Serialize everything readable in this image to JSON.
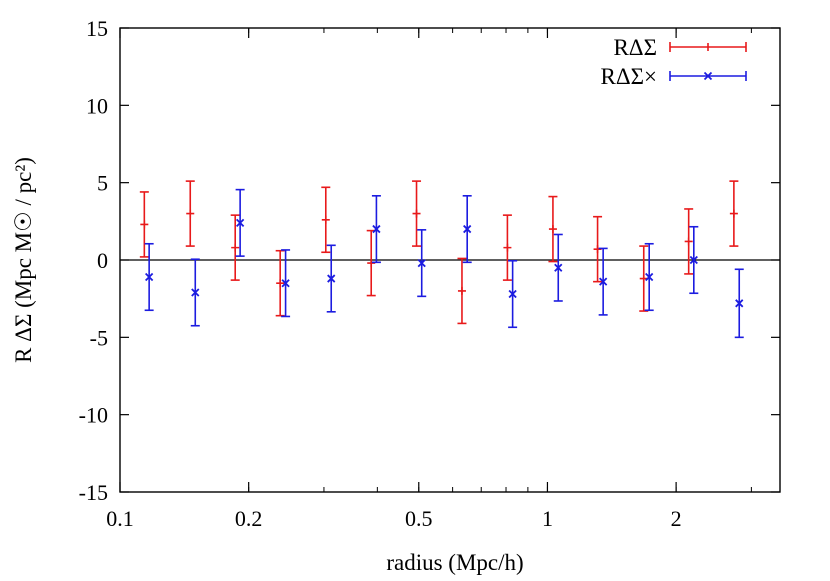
{
  "chart_data": {
    "type": "scatter",
    "title": "",
    "xlabel": "radius (Mpc/h)",
    "ylabel": "R ΔΣ (Mpc M☉ / pc²)",
    "xscale": "log",
    "xlim": [
      0.1,
      3.5
    ],
    "ylim": [
      -15,
      15
    ],
    "xticks": [
      {
        "value": 0.1,
        "label": "0.1"
      },
      {
        "value": 0.2,
        "label": "0.2"
      },
      {
        "value": 0.5,
        "label": "0.5"
      },
      {
        "value": 1,
        "label": "1"
      },
      {
        "value": 2,
        "label": "2"
      }
    ],
    "yticks": [
      {
        "value": -15,
        "label": "-15"
      },
      {
        "value": -10,
        "label": "-10"
      },
      {
        "value": -5,
        "label": "-5"
      },
      {
        "value": 0,
        "label": "0"
      },
      {
        "value": 5,
        "label": "5"
      },
      {
        "value": 10,
        "label": "10"
      },
      {
        "value": 15,
        "label": "15"
      }
    ],
    "reference_line": 0,
    "grid": false,
    "legend_position": "top-right",
    "series": [
      {
        "name": "RΔΣ",
        "color": "#e8191a",
        "marker": "plus",
        "x": [
          0.114,
          0.146,
          0.186,
          0.237,
          0.303,
          0.387,
          0.494,
          0.631,
          0.806,
          1.03,
          1.31,
          1.68,
          2.14,
          2.73
        ],
        "y": [
          2.3,
          3.0,
          0.8,
          -1.5,
          2.6,
          -0.2,
          3.0,
          -2.0,
          0.8,
          2.0,
          0.7,
          -1.2,
          1.2,
          3.0
        ],
        "yerr": [
          2.1,
          2.1,
          2.1,
          2.1,
          2.1,
          2.1,
          2.1,
          2.1,
          2.1,
          2.1,
          2.1,
          2.1,
          2.1,
          2.1
        ]
      },
      {
        "name": "RΔΣ×",
        "color": "#1c1ce0",
        "marker": "x",
        "x": [
          0.117,
          0.15,
          0.191,
          0.244,
          0.312,
          0.398,
          0.508,
          0.649,
          0.829,
          1.06,
          1.35,
          1.73,
          2.2,
          2.81
        ],
        "y": [
          -1.1,
          -2.1,
          2.4,
          -1.5,
          -1.2,
          2.0,
          -0.2,
          2.0,
          -2.2,
          -0.5,
          -1.4,
          -1.1,
          0.0,
          -2.8
        ],
        "yerr": [
          2.15,
          2.15,
          2.15,
          2.15,
          2.15,
          2.15,
          2.15,
          2.15,
          2.15,
          2.15,
          2.15,
          2.15,
          2.15,
          2.2
        ]
      }
    ]
  }
}
